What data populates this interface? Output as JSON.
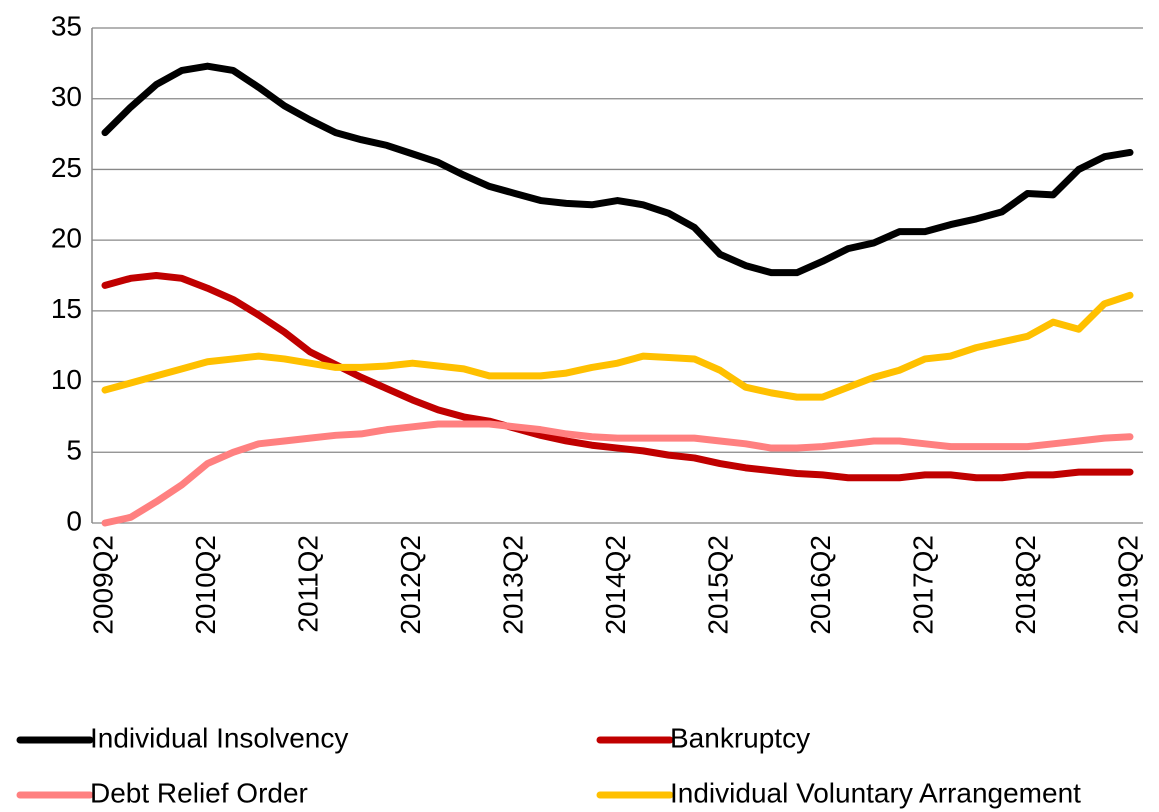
{
  "chart_data": {
    "type": "line",
    "categories": [
      "2009Q2",
      null,
      null,
      null,
      "2010Q2",
      null,
      null,
      null,
      "2011Q2",
      null,
      null,
      null,
      "2012Q2",
      null,
      null,
      null,
      "2013Q2",
      null,
      null,
      null,
      "2014Q2",
      null,
      null,
      null,
      "2015Q2",
      null,
      null,
      null,
      "2016Q2",
      null,
      null,
      null,
      "2017Q2",
      null,
      null,
      null,
      "2018Q2",
      null,
      null,
      null,
      "2019Q2"
    ],
    "series": [
      {
        "name": "Individual Insolvency",
        "color": "#000000",
        "values": [
          27.6,
          29.4,
          31.0,
          32.0,
          32.3,
          32.0,
          30.8,
          29.5,
          28.5,
          27.6,
          27.1,
          26.7,
          26.1,
          25.5,
          24.6,
          23.8,
          23.3,
          22.8,
          22.6,
          22.5,
          22.8,
          22.5,
          21.9,
          20.9,
          19.0,
          18.2,
          17.7,
          17.7,
          18.5,
          19.4,
          19.8,
          20.6,
          20.6,
          21.1,
          21.5,
          22.0,
          23.3,
          23.2,
          25.0,
          25.9,
          26.2
        ]
      },
      {
        "name": "Bankruptcy",
        "color": "#c00000",
        "values": [
          16.8,
          17.3,
          17.5,
          17.3,
          16.6,
          15.8,
          14.7,
          13.5,
          12.1,
          11.2,
          10.3,
          9.5,
          8.7,
          8.0,
          7.5,
          7.2,
          6.7,
          6.2,
          5.8,
          5.5,
          5.3,
          5.1,
          4.8,
          4.6,
          4.2,
          3.9,
          3.7,
          3.5,
          3.4,
          3.2,
          3.2,
          3.2,
          3.4,
          3.4,
          3.2,
          3.2,
          3.4,
          3.4,
          3.6,
          3.6,
          3.6
        ]
      },
      {
        "name": "Debt Relief Order",
        "color": "#ff8080",
        "values": [
          0,
          0.4,
          1.5,
          2.7,
          4.2,
          5.0,
          5.6,
          5.8,
          6.0,
          6.2,
          6.3,
          6.6,
          6.8,
          7.0,
          7.0,
          7.0,
          6.8,
          6.6,
          6.3,
          6.1,
          6.0,
          6.0,
          6.0,
          6.0,
          5.8,
          5.6,
          5.3,
          5.3,
          5.4,
          5.6,
          5.8,
          5.8,
          5.6,
          5.4,
          5.4,
          5.4,
          5.4,
          5.6,
          5.8,
          6.0,
          6.1
        ]
      },
      {
        "name": "Individual Voluntary Arrangement",
        "color": "#ffc000",
        "values": [
          9.4,
          9.9,
          10.4,
          10.9,
          11.4,
          11.6,
          11.8,
          11.6,
          11.3,
          11.0,
          11.0,
          11.1,
          11.3,
          11.1,
          10.9,
          10.4,
          10.4,
          10.4,
          10.6,
          11.0,
          11.3,
          11.8,
          11.7,
          11.6,
          10.8,
          9.6,
          9.2,
          8.9,
          8.9,
          9.6,
          10.3,
          10.8,
          11.6,
          11.8,
          12.4,
          12.8,
          13.2,
          14.2,
          13.7,
          15.5,
          16.1
        ]
      }
    ],
    "ylim": [
      0,
      35
    ],
    "yticks": [
      0,
      5,
      10,
      15,
      20,
      25,
      30,
      35
    ],
    "grid": true
  }
}
